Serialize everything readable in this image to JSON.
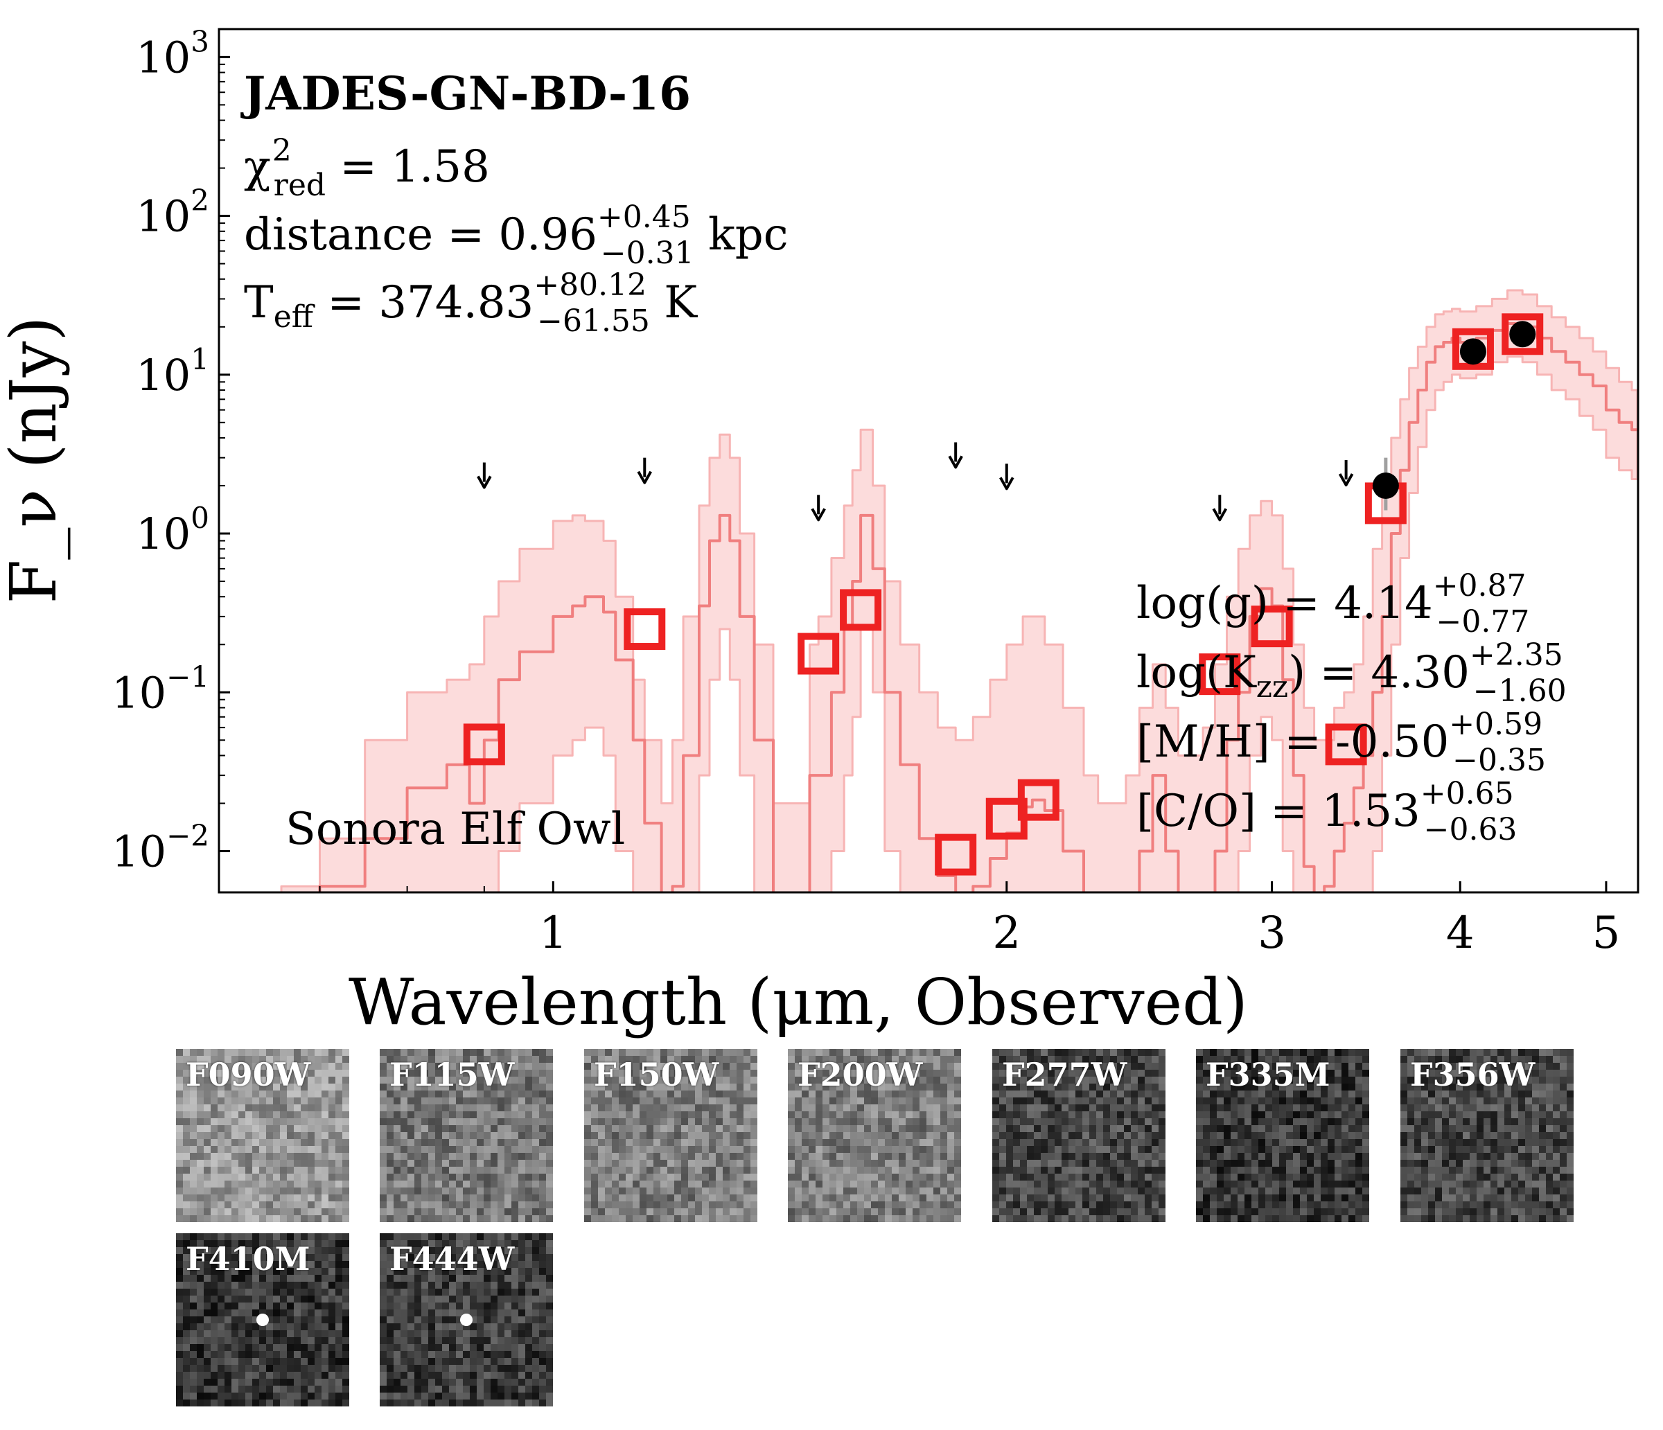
{
  "chart_data": {
    "type": "scatter",
    "title": "JADES-GN-BD-16",
    "xlabel": "Wavelength (μm, Observed)",
    "ylabel": "F_ν (nJy)",
    "xscale": "log",
    "yscale": "log",
    "xlim": [
      0.6,
      5.25
    ],
    "ylim": [
      0.0055,
      1500
    ],
    "x_ticks": [
      {
        "value": 1,
        "label": "1"
      },
      {
        "value": 2,
        "label": "2"
      },
      {
        "value": 3,
        "label": "3"
      },
      {
        "value": 4,
        "label": "4"
      },
      {
        "value": 5,
        "label": "5"
      }
    ],
    "y_ticks": [
      {
        "value": 0.01,
        "base": "10",
        "exp": "−2"
      },
      {
        "value": 0.1,
        "base": "10",
        "exp": "−1"
      },
      {
        "value": 1,
        "base": "10",
        "exp": "0"
      },
      {
        "value": 10,
        "base": "10",
        "exp": "1"
      },
      {
        "value": 100,
        "base": "10",
        "exp": "2"
      },
      {
        "value": 1000,
        "base": "10",
        "exp": "3"
      }
    ],
    "colors": {
      "model_line": "#f07f7f",
      "model_band": "#fcdcdc",
      "model_photometry": "#ee2222",
      "detections": "#000000",
      "upper_limits": "#000000"
    },
    "model_name": "Sonora Elf Owl",
    "model_spectrum": {
      "x": [
        0.66,
        0.7,
        0.75,
        0.8,
        0.85,
        0.88,
        0.9,
        0.92,
        0.95,
        1.0,
        1.03,
        1.05,
        1.08,
        1.1,
        1.13,
        1.15,
        1.18,
        1.2,
        1.22,
        1.25,
        1.27,
        1.29,
        1.31,
        1.33,
        1.36,
        1.4,
        1.45,
        1.48,
        1.5,
        1.53,
        1.56,
        1.58,
        1.6,
        1.63,
        1.66,
        1.7,
        1.75,
        1.8,
        1.85,
        1.9,
        1.95,
        2.0,
        2.05,
        2.08,
        2.12,
        2.18,
        2.25,
        2.3,
        2.4,
        2.45,
        2.5,
        2.55,
        2.6,
        2.7,
        2.75,
        2.8,
        2.85,
        2.9,
        2.95,
        3.0,
        3.05,
        3.1,
        3.15,
        3.2,
        3.25,
        3.3,
        3.35,
        3.4,
        3.45,
        3.5,
        3.55,
        3.6,
        3.65,
        3.7,
        3.75,
        3.8,
        3.85,
        3.9,
        3.95,
        4.0,
        4.1,
        4.2,
        4.3,
        4.4,
        4.5,
        4.6,
        4.7,
        4.8,
        4.9,
        5.0,
        5.1,
        5.2
      ],
      "flux": [
        0.004,
        0.006,
        0.012,
        0.025,
        0.035,
        0.02,
        0.05,
        0.12,
        0.18,
        0.3,
        0.35,
        0.4,
        0.32,
        0.16,
        0.05,
        0.015,
        0.004,
        0.006,
        0.04,
        0.35,
        0.9,
        1.3,
        0.9,
        0.3,
        0.05,
        0.004,
        0.004,
        0.03,
        0.03,
        0.1,
        0.25,
        0.5,
        1.3,
        0.6,
        0.1,
        0.035,
        0.012,
        0.007,
        0.005,
        0.006,
        0.009,
        0.013,
        0.019,
        0.021,
        0.018,
        0.01,
        0.005,
        0.004,
        0.004,
        0.01,
        0.03,
        0.01,
        0.004,
        0.004,
        0.01,
        0.05,
        0.1,
        0.3,
        0.45,
        0.35,
        0.12,
        0.03,
        0.008,
        0.005,
        0.006,
        0.01,
        0.015,
        0.025,
        0.04,
        0.1,
        0.3,
        1.0,
        2.5,
        5.0,
        8.0,
        12,
        15,
        16,
        17,
        16,
        17,
        19,
        21,
        20,
        17,
        14,
        12,
        10,
        8.5,
        6.0,
        5.0,
        4.5
      ],
      "band_upper": [
        0.006,
        0.012,
        0.05,
        0.1,
        0.12,
        0.15,
        0.3,
        0.5,
        0.8,
        1.2,
        1.3,
        1.2,
        0.9,
        0.4,
        0.12,
        0.05,
        0.02,
        0.05,
        0.3,
        1.5,
        3.0,
        4.2,
        3.0,
        1.0,
        0.2,
        0.02,
        0.02,
        0.2,
        0.3,
        0.7,
        1.5,
        2.5,
        4.5,
        2.0,
        0.5,
        0.2,
        0.1,
        0.06,
        0.05,
        0.07,
        0.12,
        0.2,
        0.3,
        0.3,
        0.2,
        0.08,
        0.03,
        0.02,
        0.03,
        0.08,
        0.15,
        0.08,
        0.04,
        0.06,
        0.15,
        0.4,
        0.8,
        1.3,
        1.6,
        1.3,
        0.6,
        0.2,
        0.08,
        0.05,
        0.05,
        0.08,
        0.1,
        0.15,
        0.3,
        0.8,
        2.0,
        4.0,
        7.0,
        11,
        15,
        20,
        24,
        25,
        26,
        25,
        27,
        30,
        34,
        32,
        27,
        23,
        20,
        17,
        14,
        11,
        9.0,
        8.0
      ],
      "band_lower": [
        0.003,
        0.003,
        0.003,
        0.003,
        0.003,
        0.003,
        0.003,
        0.01,
        0.02,
        0.04,
        0.05,
        0.06,
        0.04,
        0.01,
        0.003,
        0.003,
        0.003,
        0.003,
        0.003,
        0.03,
        0.12,
        0.25,
        0.12,
        0.03,
        0.003,
        0.003,
        0.003,
        0.003,
        0.003,
        0.01,
        0.03,
        0.07,
        0.25,
        0.1,
        0.01,
        0.003,
        0.003,
        0.003,
        0.003,
        0.003,
        0.003,
        0.003,
        0.003,
        0.003,
        0.003,
        0.003,
        0.003,
        0.003,
        0.003,
        0.003,
        0.003,
        0.003,
        0.003,
        0.003,
        0.003,
        0.003,
        0.01,
        0.04,
        0.07,
        0.05,
        0.01,
        0.003,
        0.003,
        0.003,
        0.003,
        0.003,
        0.003,
        0.003,
        0.003,
        0.01,
        0.04,
        0.2,
        0.7,
        1.8,
        3.5,
        6.0,
        8.0,
        9.0,
        10,
        9.5,
        10,
        12,
        13,
        12,
        10,
        8.0,
        7.0,
        5.5,
        4.5,
        3.0,
        2.5,
        2.2
      ]
    },
    "model_photometry": {
      "x": [
        0.9,
        1.15,
        1.5,
        1.6,
        1.85,
        2.0,
        2.1,
        2.77,
        3.0,
        3.36,
        3.57,
        4.08,
        4.4
      ],
      "y": [
        0.047,
        0.25,
        0.175,
        0.33,
        0.0095,
        0.016,
        0.021,
        0.13,
        0.26,
        0.047,
        1.55,
        14.5,
        18.0
      ]
    },
    "detections": {
      "x": [
        3.57,
        4.08,
        4.4
      ],
      "y": [
        2.0,
        14.0,
        18.0
      ],
      "yerr_low": [
        0.6,
        1.0,
        1.0
      ],
      "yerr_high": [
        1.0,
        1.0,
        1.0
      ]
    },
    "upper_limits": {
      "x": [
        0.9,
        1.15,
        1.5,
        1.85,
        2.0,
        2.77,
        3.36
      ],
      "y": [
        2.8,
        3.0,
        1.75,
        3.75,
        2.75,
        1.75,
        2.9
      ]
    },
    "annotations": {
      "source_name": "JADES-GN-BD-16",
      "chi2": {
        "label": "χ",
        "sup": "2",
        "sub": "red",
        "eq": " = 1.58"
      },
      "distance": {
        "label": "distance = 0.96",
        "sup": "+0.45",
        "sub": "−0.31",
        "unit": " kpc"
      },
      "teff": {
        "label": "T",
        "label_sub": "eff",
        "eq": " = 374.83",
        "sup": "+80.12",
        "sub": "−61.55",
        "unit": " K"
      },
      "logg": {
        "label": "log(g) = 4.14",
        "sup": "+0.87",
        "sub": "−0.77"
      },
      "logkzz": {
        "label": "log(K",
        "label_sub": "zz",
        "eq": ") = 4.30",
        "sup": "+2.35",
        "sub": "−1.60"
      },
      "mh": {
        "label": "[M/H] = -0.50",
        "sup": "+0.59",
        "sub": "−0.35"
      },
      "co": {
        "label": "[C/O] = 1.53",
        "sup": "+0.65",
        "sub": "−0.63"
      }
    }
  },
  "stamps": [
    {
      "label": "F090W",
      "shade": 150,
      "spot": "none"
    },
    {
      "label": "F115W",
      "shade": 120,
      "spot": "none"
    },
    {
      "label": "F150W",
      "shade": 125,
      "spot": "none"
    },
    {
      "label": "F200W",
      "shade": 125,
      "spot": "none"
    },
    {
      "label": "F277W",
      "shade": 70,
      "spot": "none"
    },
    {
      "label": "F335M",
      "shade": 55,
      "spot": "none"
    },
    {
      "label": "F356W",
      "shade": 70,
      "spot": "none"
    },
    {
      "label": "F410M",
      "shade": 55,
      "spot": "center"
    },
    {
      "label": "F444W",
      "shade": 60,
      "spot": "center"
    }
  ]
}
